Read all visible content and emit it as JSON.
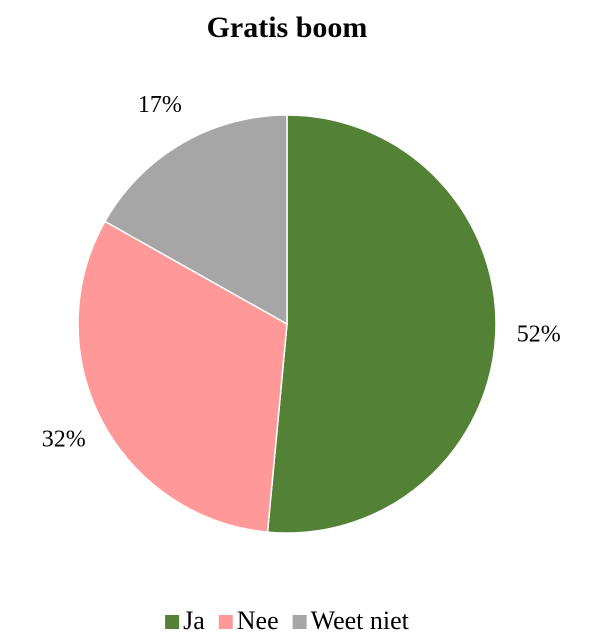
{
  "chart_data": {
    "type": "pie",
    "title": "Gratis boom",
    "categories": [
      "Ja",
      "Nee",
      "Weet niet"
    ],
    "values": [
      52,
      32,
      17
    ],
    "value_labels": [
      "52%",
      "32%",
      "17%"
    ],
    "colors": [
      "#538135",
      "#FF9999",
      "#A6A6A6"
    ],
    "legend": "bottom"
  }
}
